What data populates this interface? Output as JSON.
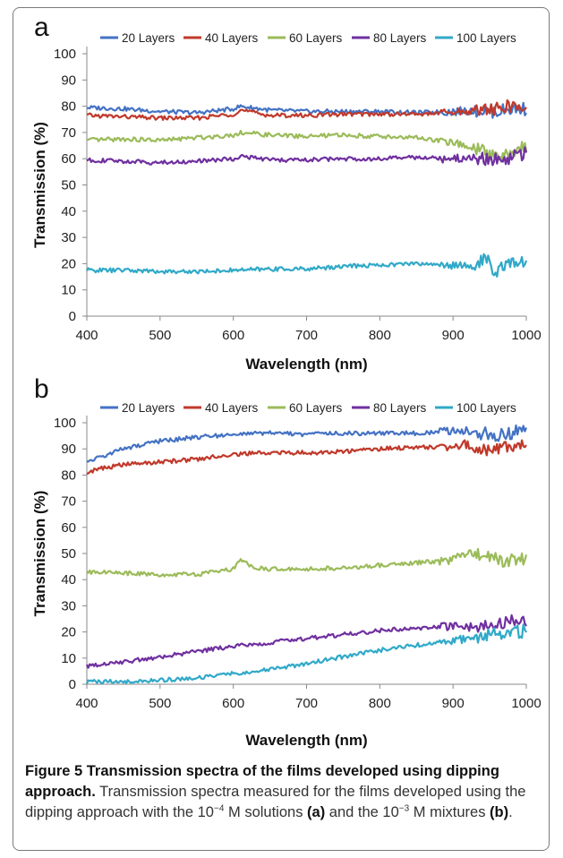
{
  "panel_labels": [
    "a",
    "b"
  ],
  "caption": {
    "heading": "Figure 5 Transmission spectra of the films developed using dipping approach.",
    "body_before": "Transmission spectra measured for the films developed using the dipping approach with the 10",
    "exp1": "−4",
    "body_middle": " M solutions ",
    "tag_a": "(a)",
    "body_middle2": " and the 10",
    "exp2": "−3",
    "body_middle3": " M mixtures ",
    "tag_b": "(b)",
    "body_end": "."
  },
  "colors": {
    "20 Layers": "#4472c4",
    "40 Layers": "#c0392b",
    "60 Layers": "#9bbb59",
    "80 Layers": "#7030a0",
    "100 Layers": "#31a9c8"
  },
  "chart_data": [
    {
      "type": "line",
      "panel": "a",
      "xlabel": "Wavelength (nm)",
      "ylabel": "Transmission (%)",
      "xlim": [
        400,
        1000
      ],
      "ylim": [
        0,
        100
      ],
      "xticks": [
        400,
        500,
        600,
        700,
        800,
        900,
        1000
      ],
      "yticks": [
        0,
        10,
        20,
        30,
        40,
        50,
        60,
        70,
        80,
        90,
        100
      ],
      "legend": "top",
      "grid": false,
      "series": [
        {
          "name": "20 Layers",
          "x": [
            400,
            450,
            500,
            550,
            600,
            610,
            650,
            700,
            750,
            800,
            850,
            900,
            930,
            960,
            980,
            1000
          ],
          "y": [
            79.5,
            79,
            78,
            77.5,
            79,
            80,
            78.5,
            78,
            78,
            78,
            77.5,
            78,
            78.5,
            78,
            79,
            79
          ]
        },
        {
          "name": "40 Layers",
          "x": [
            400,
            450,
            500,
            550,
            600,
            610,
            650,
            700,
            750,
            800,
            850,
            900,
            930,
            960,
            980,
            1000
          ],
          "y": [
            76.5,
            76,
            75.5,
            75.5,
            77,
            78.5,
            76.5,
            76.5,
            77,
            77,
            77,
            77.5,
            78.5,
            79,
            80,
            79
          ]
        },
        {
          "name": "60 Layers",
          "x": [
            400,
            450,
            500,
            550,
            600,
            610,
            650,
            700,
            750,
            800,
            850,
            900,
            930,
            950,
            970,
            1000
          ],
          "y": [
            67,
            67.5,
            67,
            68,
            69,
            70,
            69,
            68.5,
            69,
            68.5,
            68,
            66,
            64,
            62,
            61,
            65
          ]
        },
        {
          "name": "80 Layers",
          "x": [
            400,
            450,
            500,
            550,
            600,
            610,
            650,
            700,
            750,
            800,
            850,
            900,
            930,
            950,
            970,
            1000
          ],
          "y": [
            59.5,
            59,
            58.5,
            59,
            60,
            61,
            59.5,
            59.5,
            60,
            60,
            60.5,
            60,
            60.5,
            59.5,
            60,
            62
          ]
        },
        {
          "name": "100 Layers",
          "x": [
            400,
            450,
            500,
            550,
            600,
            650,
            700,
            750,
            800,
            850,
            900,
            930,
            945,
            955,
            970,
            1000
          ],
          "y": [
            17.5,
            17.5,
            17,
            17,
            17.5,
            18,
            18,
            19,
            19.5,
            20,
            19.5,
            19,
            22,
            17,
            19,
            21
          ]
        }
      ]
    },
    {
      "type": "line",
      "panel": "b",
      "xlabel": "Wavelength (nm)",
      "ylabel": "Transmission (%)",
      "xlim": [
        400,
        1000
      ],
      "ylim": [
        0,
        100
      ],
      "xticks": [
        400,
        500,
        600,
        700,
        800,
        900,
        1000
      ],
      "yticks": [
        0,
        10,
        20,
        30,
        40,
        50,
        60,
        70,
        80,
        90,
        100
      ],
      "legend": "top",
      "grid": false,
      "series": [
        {
          "name": "20 Layers",
          "x": [
            400,
            420,
            450,
            500,
            550,
            600,
            650,
            700,
            750,
            800,
            850,
            900,
            930,
            960,
            980,
            1000
          ],
          "y": [
            85,
            87,
            90,
            93,
            94.5,
            95.5,
            96,
            95.5,
            96,
            96,
            96,
            97,
            96.5,
            95,
            96,
            98
          ]
        },
        {
          "name": "40 Layers",
          "x": [
            400,
            420,
            450,
            500,
            550,
            600,
            650,
            700,
            750,
            800,
            850,
            900,
            915,
            940,
            970,
            1000
          ],
          "y": [
            81,
            82.5,
            84,
            85,
            86,
            88,
            88.5,
            88.5,
            89,
            90,
            90.5,
            91,
            92,
            89,
            91,
            91
          ]
        },
        {
          "name": "60 Layers",
          "x": [
            400,
            450,
            500,
            550,
            600,
            610,
            630,
            650,
            700,
            750,
            800,
            850,
            900,
            915,
            950,
            970,
            1000
          ],
          "y": [
            43,
            42.5,
            42,
            42,
            44,
            47.5,
            44.5,
            44,
            44,
            44.5,
            45.5,
            46.5,
            47.5,
            50,
            49,
            47,
            48
          ]
        },
        {
          "name": "80 Layers",
          "x": [
            400,
            450,
            500,
            550,
            600,
            650,
            700,
            750,
            800,
            850,
            900,
            930,
            960,
            990,
            1000
          ],
          "y": [
            7,
            8.5,
            10.5,
            12.5,
            14.5,
            16,
            17.5,
            19,
            20.5,
            21.5,
            22,
            22,
            23.5,
            25,
            24
          ]
        },
        {
          "name": "100 Layers",
          "x": [
            400,
            450,
            500,
            550,
            600,
            650,
            700,
            750,
            800,
            850,
            900,
            930,
            950,
            970,
            1000
          ],
          "y": [
            1,
            1,
            1.5,
            2.5,
            4,
            5.5,
            8,
            10.5,
            13,
            15,
            16.5,
            18,
            19,
            19.5,
            20.5
          ]
        }
      ]
    }
  ]
}
